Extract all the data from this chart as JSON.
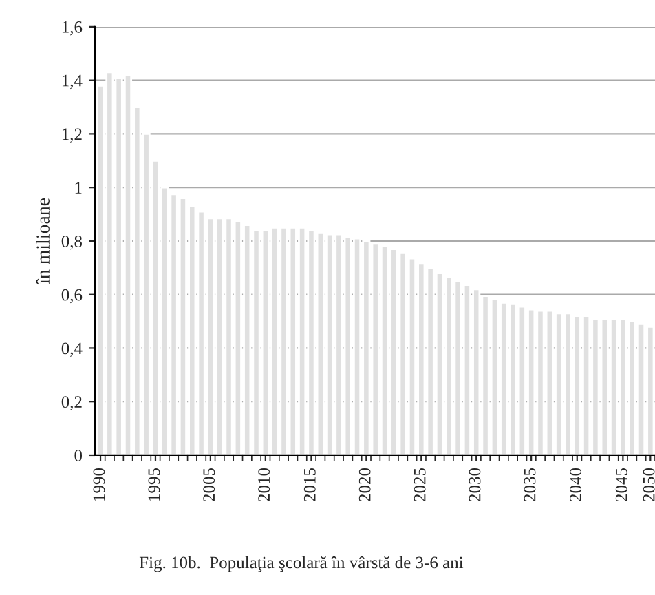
{
  "chart_data": {
    "type": "bar",
    "ylabel": "în milioane",
    "categories": [
      "1990",
      null,
      null,
      null,
      null,
      null,
      "1995",
      null,
      null,
      null,
      null,
      null,
      "2005",
      null,
      null,
      null,
      null,
      null,
      "2010",
      null,
      null,
      null,
      null,
      "2015",
      null,
      null,
      null,
      null,
      null,
      "2020",
      null,
      null,
      null,
      null,
      null,
      "2025",
      null,
      null,
      null,
      null,
      null,
      "2030",
      null,
      null,
      null,
      null,
      null,
      "2035",
      null,
      null,
      null,
      null,
      "2040",
      null,
      null,
      null,
      null,
      "2045",
      null,
      null,
      "2050"
    ],
    "values": [
      1.38,
      1.43,
      1.41,
      1.42,
      1.3,
      1.2,
      1.1,
      1.0,
      0.975,
      0.96,
      0.93,
      0.91,
      0.885,
      0.885,
      0.885,
      0.875,
      0.86,
      0.84,
      0.84,
      0.85,
      0.85,
      0.85,
      0.85,
      0.84,
      0.83,
      0.825,
      0.825,
      0.815,
      0.81,
      0.8,
      0.79,
      0.78,
      0.77,
      0.755,
      0.735,
      0.715,
      0.7,
      0.68,
      0.665,
      0.65,
      0.635,
      0.62,
      0.595,
      0.585,
      0.57,
      0.565,
      0.555,
      0.545,
      0.54,
      0.54,
      0.53,
      0.53,
      0.52,
      0.52,
      0.51,
      0.51,
      0.51,
      0.51,
      0.5,
      0.49,
      0.48
    ],
    "color": "#e0e0e0",
    "ylim": [
      0,
      1.6
    ],
    "yticks": [
      0,
      {
        "value": 0.2,
        "label": "0,2"
      },
      {
        "value": 0.4,
        "label": "0,4"
      },
      {
        "value": 0.6,
        "label": "0,6"
      },
      {
        "value": 0.8,
        "label": "0,8"
      },
      1,
      {
        "value": 1.2,
        "label": "1,2"
      },
      {
        "value": 1.4,
        "label": "1,4"
      },
      {
        "value": 1.6,
        "label": "1,6"
      }
    ],
    "grid": "y",
    "annotations": [
      "Fig. 10b.  Populaţia şcolară în vârstă de 3-6 ani"
    ]
  }
}
